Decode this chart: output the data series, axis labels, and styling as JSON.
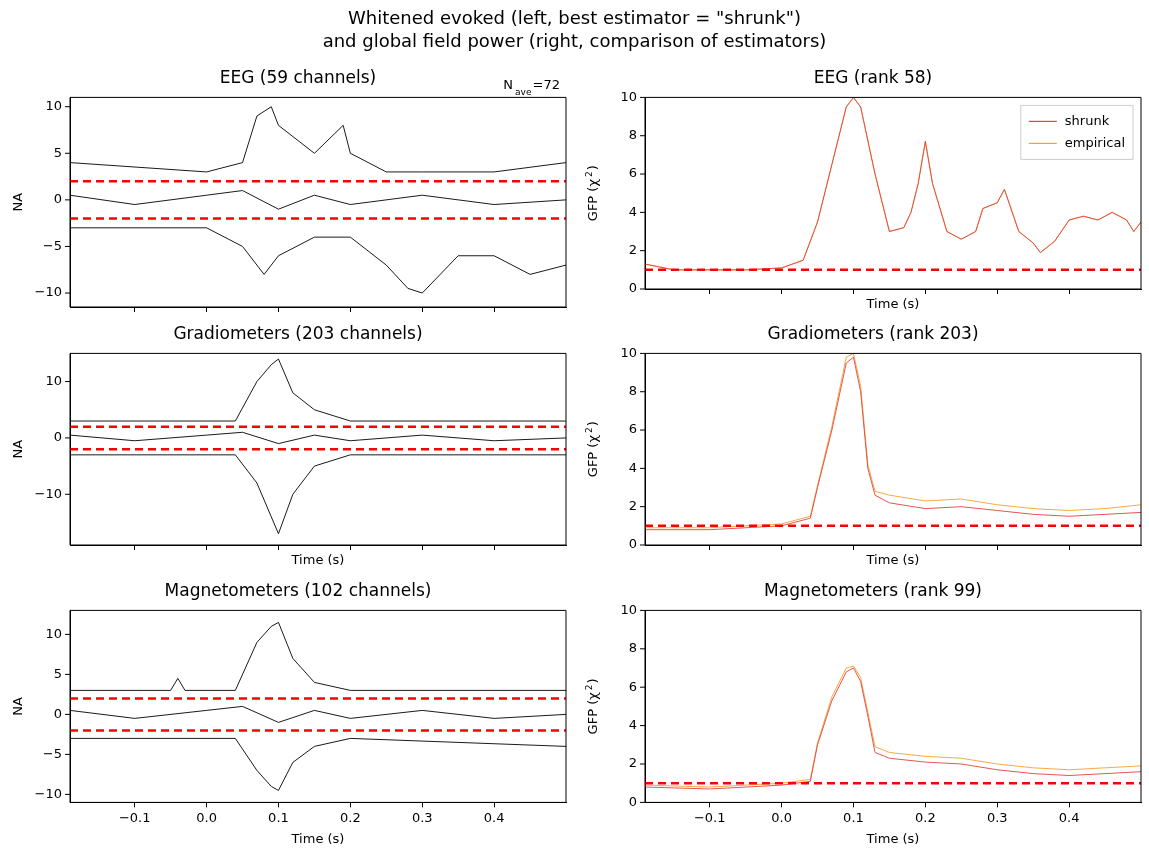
{
  "chart_data": [
    {
      "type": "other",
      "title": "Whitened evoked (left, best estimator = \"shrunk\")\nand global field power (right, comparison of estimators)"
    },
    {
      "type": "line",
      "title": "EEG (59 channels)",
      "ylabel": "NA",
      "annotations": [
        "N$_{ave}$=72"
      ],
      "xlim": [
        -0.19,
        0.5
      ],
      "xticks": [
        {
          "value": -0.1,
          "label": null
        },
        {
          "value": 0,
          "label": null
        },
        {
          "value": 0.1,
          "label": null
        },
        {
          "value": 0.2,
          "label": null
        },
        {
          "value": 0.3,
          "label": null
        },
        {
          "value": 0.4,
          "label": null
        }
      ],
      "ylim": [
        -11.5,
        11
      ],
      "yticks": [
        -10,
        -5,
        0,
        5,
        10
      ],
      "tick_labels": "y",
      "grid": false,
      "legend": false,
      "marker": "none",
      "line_style": "solid",
      "ref_lines": [
        {
          "axis": "y",
          "value": 2,
          "color": "#ff0000",
          "line_style": "dashed"
        },
        {
          "axis": "y",
          "value": -2,
          "color": "#ff0000",
          "line_style": "dashed"
        }
      ],
      "series": [
        {
          "color": "#000000",
          "x": [
            -0.19,
            0,
            0.05,
            0.07,
            0.09,
            0.1,
            0.15,
            0.19,
            0.2,
            0.25,
            0.3,
            0.4,
            0.5
          ],
          "values": [
            4,
            3,
            4,
            9,
            10,
            8,
            5,
            8,
            5,
            3,
            3,
            3,
            4
          ]
        },
        {
          "color": "#000000",
          "x": [
            -0.19,
            -0.1,
            0,
            0.05,
            0.1,
            0.15,
            0.2,
            0.3,
            0.4,
            0.5
          ],
          "values": [
            0.5,
            -0.5,
            0.5,
            1,
            -1,
            0.5,
            -0.5,
            0.5,
            -0.5,
            0
          ]
        },
        {
          "color": "#000000",
          "x": [
            -0.19,
            0,
            0.05,
            0.08,
            0.1,
            0.15,
            0.2,
            0.25,
            0.28,
            0.3,
            0.35,
            0.4,
            0.45,
            0.5
          ],
          "values": [
            -3,
            -3,
            -5,
            -8,
            -6,
            -4,
            -4,
            -7,
            -9.5,
            -10,
            -6,
            -6,
            -8,
            -7
          ]
        }
      ]
    },
    {
      "type": "line",
      "title": "EEG (rank 58)",
      "xlabel": "Time (s)",
      "ylabel": "GFP (χ$^{2}$)",
      "xlim": [
        -0.19,
        0.5
      ],
      "xticks": [
        {
          "value": -0.1,
          "label": null
        },
        {
          "value": 0,
          "label": null
        },
        {
          "value": 0.1,
          "label": null
        },
        {
          "value": 0.2,
          "label": null
        },
        {
          "value": 0.3,
          "label": null
        },
        {
          "value": 0.4,
          "label": null
        }
      ],
      "ylim": [
        0,
        10
      ],
      "yticks": [
        0,
        2,
        4,
        6,
        8,
        10
      ],
      "tick_labels": "y",
      "grid": false,
      "legend": "top right",
      "marker": "none",
      "line_style": "solid",
      "ref_lines": [
        {
          "axis": "y",
          "value": 1,
          "color": "#ff0000",
          "line_style": "dashed"
        }
      ],
      "series": [
        {
          "name": "shrunk",
          "color": "#e0443c",
          "x": [
            -0.19,
            -0.15,
            -0.1,
            -0.05,
            0,
            0.03,
            0.05,
            0.07,
            0.09,
            0.1,
            0.11,
            0.13,
            0.15,
            0.17,
            0.18,
            0.19,
            0.2,
            0.21,
            0.23,
            0.25,
            0.27,
            0.28,
            0.3,
            0.31,
            0.33,
            0.35,
            0.36,
            0.38,
            0.4,
            0.42,
            0.44,
            0.46,
            0.48,
            0.49,
            0.5
          ],
          "values": [
            1.3,
            1,
            1,
            1,
            1.1,
            1.5,
            3.5,
            6.5,
            9.5,
            10,
            9.5,
            6,
            3,
            3.2,
            4,
            5.5,
            7.7,
            5.5,
            3,
            2.6,
            3,
            4.2,
            4.5,
            5.2,
            3,
            2.4,
            1.9,
            2.5,
            3.6,
            3.8,
            3.6,
            4,
            3.6,
            3,
            3.5
          ]
        },
        {
          "name": "empirical",
          "color": "#f5a030",
          "x": [
            -0.19,
            -0.15,
            -0.1,
            -0.05,
            0,
            0.03,
            0.05,
            0.07,
            0.09,
            0.1,
            0.11,
            0.13,
            0.15,
            0.17,
            0.18,
            0.19,
            0.2,
            0.21,
            0.23,
            0.25,
            0.27,
            0.28,
            0.3,
            0.31,
            0.33,
            0.35,
            0.36,
            0.38,
            0.4,
            0.42,
            0.44,
            0.46,
            0.48,
            0.49,
            0.5
          ],
          "values": [
            1.3,
            1,
            1,
            1,
            1.1,
            1.5,
            3.5,
            6.5,
            9.5,
            10,
            9.5,
            6,
            3,
            3.2,
            4,
            5.5,
            7.7,
            5.5,
            3,
            2.6,
            3,
            4.2,
            4.5,
            5.2,
            3,
            2.4,
            1.9,
            2.5,
            3.6,
            3.8,
            3.6,
            4,
            3.6,
            3,
            3.5
          ]
        }
      ]
    },
    {
      "type": "line",
      "title": "Gradiometers (203 channels)",
      "xlabel": "Time (s)",
      "ylabel": "NA",
      "xlim": [
        -0.19,
        0.5
      ],
      "xticks": [
        {
          "value": -0.1,
          "label": null
        },
        {
          "value": 0,
          "label": null
        },
        {
          "value": 0.1,
          "label": null
        },
        {
          "value": 0.2,
          "label": null
        },
        {
          "value": 0.3,
          "label": null
        },
        {
          "value": 0.4,
          "label": null
        }
      ],
      "ylim": [
        -19,
        15
      ],
      "yticks": [
        -10,
        0,
        10
      ],
      "tick_labels": "y",
      "grid": false,
      "legend": false,
      "marker": "none",
      "line_style": "solid",
      "ref_lines": [
        {
          "axis": "y",
          "value": 2,
          "color": "#ff0000",
          "line_style": "dashed"
        },
        {
          "axis": "y",
          "value": -2,
          "color": "#ff0000",
          "line_style": "dashed"
        }
      ],
      "series": [
        {
          "color": "#000000",
          "x": [
            -0.19,
            0.04,
            0.07,
            0.09,
            0.1,
            0.12,
            0.15,
            0.2,
            0.5
          ],
          "values": [
            3,
            3,
            10,
            13,
            14,
            8,
            5,
            3,
            3
          ]
        },
        {
          "color": "#000000",
          "x": [
            -0.19,
            -0.1,
            0,
            0.05,
            0.1,
            0.15,
            0.2,
            0.3,
            0.4,
            0.5
          ],
          "values": [
            0.5,
            -0.5,
            0.5,
            1,
            -1,
            0.5,
            -0.5,
            0.5,
            -0.5,
            0
          ]
        },
        {
          "color": "#000000",
          "x": [
            -0.19,
            0.04,
            0.07,
            0.09,
            0.1,
            0.12,
            0.15,
            0.2,
            0.5
          ],
          "values": [
            -3,
            -3,
            -8,
            -14,
            -17,
            -10,
            -5,
            -3,
            -3
          ]
        }
      ]
    },
    {
      "type": "line",
      "title": "Gradiometers (rank 203)",
      "xlabel": "Time (s)",
      "ylabel": "GFP (χ$^{2}$)",
      "xlim": [
        -0.19,
        0.5
      ],
      "xticks": [
        {
          "value": -0.1,
          "label": null
        },
        {
          "value": 0,
          "label": null
        },
        {
          "value": 0.1,
          "label": null
        },
        {
          "value": 0.2,
          "label": null
        },
        {
          "value": 0.3,
          "label": null
        },
        {
          "value": 0.4,
          "label": null
        }
      ],
      "ylim": [
        0,
        10
      ],
      "yticks": [
        0,
        2,
        4,
        6,
        8,
        10
      ],
      "tick_labels": "y",
      "grid": false,
      "legend": false,
      "marker": "none",
      "line_style": "solid",
      "ref_lines": [
        {
          "axis": "y",
          "value": 1,
          "color": "#ff0000",
          "line_style": "dashed"
        }
      ],
      "series": [
        {
          "color": "#e0443c",
          "x": [
            -0.19,
            -0.1,
            0,
            0.04,
            0.05,
            0.07,
            0.09,
            0.1,
            0.11,
            0.12,
            0.13,
            0.15,
            0.2,
            0.25,
            0.3,
            0.35,
            0.4,
            0.45,
            0.5
          ],
          "values": [
            0.8,
            0.8,
            1,
            1.4,
            3,
            6,
            9.5,
            9.8,
            8,
            4,
            2.6,
            2.2,
            1.9,
            2,
            1.8,
            1.6,
            1.5,
            1.6,
            1.7
          ]
        },
        {
          "color": "#f5a030",
          "x": [
            -0.19,
            -0.1,
            0,
            0.04,
            0.05,
            0.07,
            0.09,
            0.1,
            0.11,
            0.12,
            0.13,
            0.15,
            0.2,
            0.25,
            0.3,
            0.35,
            0.4,
            0.45,
            0.5
          ],
          "values": [
            0.9,
            0.9,
            1.1,
            1.5,
            3.1,
            6.2,
            9.8,
            10,
            8.3,
            4.2,
            2.8,
            2.6,
            2.3,
            2.4,
            2.1,
            1.9,
            1.8,
            1.9,
            2.1
          ]
        }
      ]
    },
    {
      "type": "line",
      "title": "Magnetometers (102 channels)",
      "xlabel": "Time (s)",
      "ylabel": "NA",
      "xlim": [
        -0.19,
        0.5
      ],
      "xticks": [
        {
          "value": -0.1,
          "label": "−0.1"
        },
        {
          "value": 0,
          "label": "0.0"
        },
        0.1,
        0.2,
        0.3,
        0.4
      ],
      "ylim": [
        -11,
        13
      ],
      "yticks": [
        -10,
        -5,
        0,
        5,
        10
      ],
      "grid": false,
      "legend": false,
      "marker": "none",
      "line_style": "solid",
      "ref_lines": [
        {
          "axis": "y",
          "value": 2,
          "color": "#ff0000",
          "line_style": "dashed"
        },
        {
          "axis": "y",
          "value": -2,
          "color": "#ff0000",
          "line_style": "dashed"
        }
      ],
      "series": [
        {
          "color": "#000000",
          "x": [
            -0.19,
            -0.05,
            -0.04,
            -0.03,
            0.04,
            0.07,
            0.09,
            0.1,
            0.12,
            0.15,
            0.2,
            0.5
          ],
          "values": [
            3,
            3,
            4.5,
            3,
            3,
            9,
            11,
            11.5,
            7,
            4,
            3,
            3
          ]
        },
        {
          "color": "#000000",
          "x": [
            -0.19,
            -0.1,
            0,
            0.05,
            0.1,
            0.15,
            0.2,
            0.3,
            0.4,
            0.5
          ],
          "values": [
            0.5,
            -0.5,
            0.5,
            1,
            -1,
            0.5,
            -0.5,
            0.5,
            -0.5,
            0
          ]
        },
        {
          "color": "#000000",
          "x": [
            -0.19,
            0.04,
            0.07,
            0.09,
            0.1,
            0.12,
            0.15,
            0.2,
            0.5
          ],
          "values": [
            -3,
            -3,
            -7,
            -9,
            -9.5,
            -6,
            -4,
            -3,
            -4
          ]
        }
      ]
    },
    {
      "type": "line",
      "title": "Magnetometers (rank 99)",
      "xlabel": "Time (s)",
      "ylabel": "GFP (χ$^{2}$)",
      "xlim": [
        -0.19,
        0.5
      ],
      "xticks": [
        {
          "value": -0.1,
          "label": "−0.1"
        },
        {
          "value": 0,
          "label": "0.0"
        },
        0.1,
        0.2,
        0.3,
        0.4
      ],
      "ylim": [
        0,
        10
      ],
      "yticks": [
        0,
        2,
        4,
        6,
        8,
        10
      ],
      "grid": false,
      "legend": false,
      "marker": "none",
      "line_style": "solid",
      "ref_lines": [
        {
          "axis": "y",
          "value": 1,
          "color": "#ff0000",
          "line_style": "dashed"
        }
      ],
      "series": [
        {
          "color": "#e0443c",
          "x": [
            -0.19,
            -0.1,
            0,
            0.04,
            0.05,
            0.07,
            0.09,
            0.1,
            0.11,
            0.12,
            0.13,
            0.15,
            0.2,
            0.25,
            0.3,
            0.35,
            0.4,
            0.45,
            0.5
          ],
          "values": [
            0.8,
            0.7,
            0.9,
            1.1,
            3,
            5.3,
            6.8,
            7,
            6.3,
            4.5,
            2.6,
            2.3,
            2.1,
            2,
            1.7,
            1.5,
            1.4,
            1.5,
            1.6
          ]
        },
        {
          "color": "#f5a030",
          "x": [
            -0.19,
            -0.1,
            0,
            0.04,
            0.05,
            0.07,
            0.09,
            0.1,
            0.11,
            0.12,
            0.13,
            0.15,
            0.2,
            0.25,
            0.3,
            0.35,
            0.4,
            0.45,
            0.5
          ],
          "values": [
            0.9,
            0.8,
            1,
            1.2,
            3.1,
            5.5,
            7,
            7.1,
            6.5,
            4.7,
            2.9,
            2.6,
            2.4,
            2.3,
            2,
            1.8,
            1.7,
            1.8,
            1.9
          ]
        }
      ]
    }
  ]
}
